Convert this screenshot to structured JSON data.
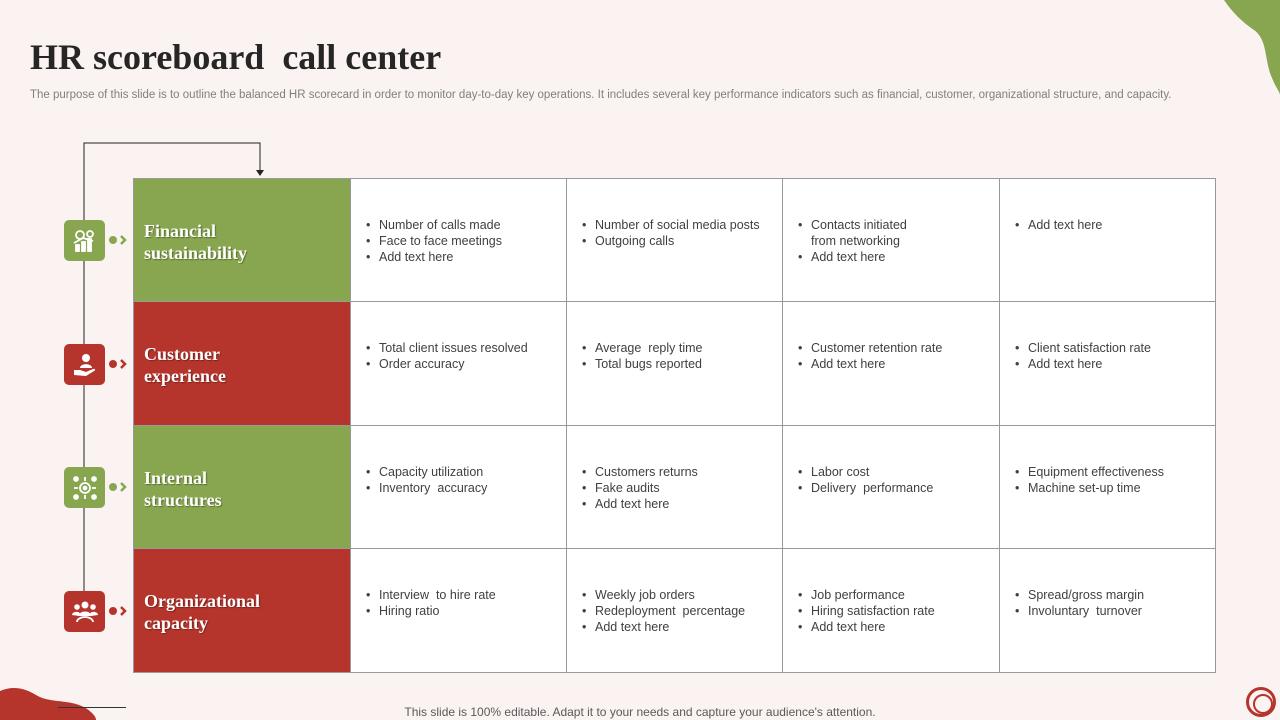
{
  "title": "HR scoreboard  call center",
  "subtitle": "The purpose of this slide is to outline the balanced HR scorecard in order to monitor day-to-day key operations. It includes several key performance indicators such as financial, customer, organizational structure, and capacity.",
  "footer": "This slide is 100% editable. Adapt it to your needs and capture your audience's attention.",
  "colors": {
    "green": "#88a64f",
    "red": "#b5352c",
    "background": "#fbf3f1"
  },
  "rows": [
    {
      "label_line1": "Financial",
      "label_line2": "sustainability",
      "color": "green",
      "icon": "finance-icon",
      "cells": [
        [
          "Number of calls made",
          "Face to face meetings",
          "Add text here"
        ],
        [
          "Number of social media posts",
          "Outgoing calls"
        ],
        [
          "Contacts initiated from networking",
          "Add text here"
        ],
        [
          "Add text here"
        ]
      ]
    },
    {
      "label_line1": "Customer",
      "label_line2": "experience",
      "color": "red",
      "icon": "hand-user-icon",
      "cells": [
        [
          "Total client issues resolved",
          "Order accuracy"
        ],
        [
          "Average  reply time",
          "Total bugs reported"
        ],
        [
          "Customer retention rate",
          "Add text here"
        ],
        [
          "Client satisfaction rate",
          "Add text here"
        ]
      ]
    },
    {
      "label_line1": "Internal",
      "label_line2": "structures",
      "color": "green",
      "icon": "structure-icon",
      "cells": [
        [
          "Capacity utilization",
          "Inventory  accuracy"
        ],
        [
          "Customers returns",
          "Fake audits",
          "Add text here"
        ],
        [
          "Labor cost",
          "Delivery  performance"
        ],
        [
          "Equipment effectiveness",
          "Machine set-up time"
        ]
      ]
    },
    {
      "label_line1": "Organizational",
      "label_line2": "capacity",
      "color": "red",
      "icon": "team-icon",
      "cells": [
        [
          "Interview  to hire rate",
          "Hiring ratio"
        ],
        [
          "Weekly job orders",
          "Redeployment  percentage",
          "Add text here"
        ],
        [
          "Job performance",
          "Hiring satisfaction rate",
          "Add text here"
        ],
        [
          "Spread/gross margin",
          "Involuntary  turnover"
        ]
      ]
    }
  ]
}
